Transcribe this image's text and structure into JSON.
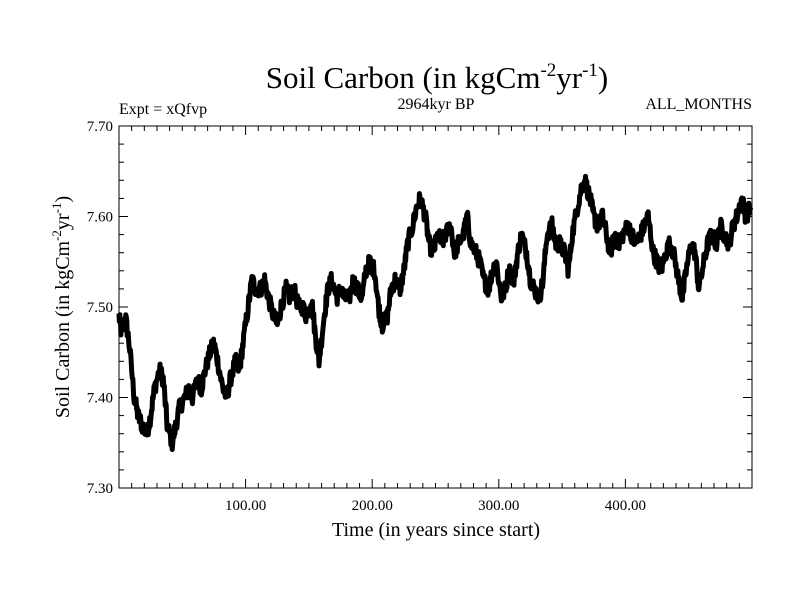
{
  "chart_data": {
    "type": "line",
    "title": "Soil Carbon (in kgCm",
    "title_sup1": "-2",
    "title_mid": "yr",
    "title_sup2": "-1",
    "title_end": ")",
    "subtitle_left": "Expt = xQfvp",
    "subtitle_center": "2964kyr BP",
    "subtitle_right": "ALL_MONTHS",
    "xlabel": "Time (in years since start)",
    "ylabel": "Soil Carbon (in kgCm",
    "ylabel_sup1": "-2",
    "ylabel_mid": "yr",
    "ylabel_sup2": "-1",
    "ylabel_end": ")",
    "xlim": [
      0,
      500
    ],
    "ylim": [
      7.3,
      7.7
    ],
    "x_ticks": [
      100,
      200,
      300,
      400
    ],
    "x_tick_labels": [
      "100.00",
      "200.00",
      "300.00",
      "400.00"
    ],
    "y_ticks": [
      7.3,
      7.4,
      7.5,
      7.6,
      7.7
    ],
    "y_tick_labels": [
      "7.30",
      "7.40",
      "7.50",
      "7.60",
      "7.70"
    ],
    "line_color": "#000000",
    "series": [
      {
        "name": "Soil Carbon",
        "x": [
          0,
          2,
          5,
          8,
          12,
          15,
          18,
          22,
          25,
          28,
          32,
          35,
          38,
          42,
          45,
          48,
          52,
          55,
          58,
          62,
          65,
          68,
          72,
          75,
          78,
          82,
          85,
          88,
          92,
          95,
          98,
          102,
          105,
          108,
          112,
          115,
          118,
          122,
          125,
          128,
          132,
          135,
          138,
          142,
          145,
          148,
          152,
          155,
          158,
          162,
          165,
          168,
          172,
          175,
          178,
          182,
          185,
          188,
          192,
          195,
          198,
          202,
          205,
          208,
          212,
          215,
          218,
          222,
          225,
          228,
          232,
          235,
          238,
          242,
          245,
          248,
          252,
          255,
          258,
          262,
          265,
          268,
          272,
          275,
          278,
          282,
          285,
          288,
          292,
          295,
          298,
          302,
          305,
          308,
          312,
          315,
          318,
          322,
          325,
          328,
          332,
          335,
          338,
          342,
          345,
          348,
          352,
          355,
          358,
          362,
          365,
          368,
          372,
          375,
          378,
          382,
          385,
          388,
          392,
          395,
          398,
          402,
          405,
          408,
          412,
          415,
          418,
          422,
          425,
          428,
          432,
          435,
          438,
          442,
          445,
          448,
          452,
          455,
          458,
          462,
          465,
          468,
          472,
          475,
          478,
          482,
          485,
          488,
          492,
          495,
          499
        ],
        "values": [
          7.49,
          7.47,
          7.49,
          7.46,
          7.4,
          7.38,
          7.37,
          7.36,
          7.38,
          7.41,
          7.43,
          7.42,
          7.37,
          7.35,
          7.37,
          7.39,
          7.4,
          7.41,
          7.4,
          7.42,
          7.41,
          7.43,
          7.45,
          7.46,
          7.44,
          7.41,
          7.4,
          7.42,
          7.44,
          7.43,
          7.46,
          7.5,
          7.53,
          7.52,
          7.52,
          7.53,
          7.51,
          7.49,
          7.48,
          7.5,
          7.52,
          7.51,
          7.52,
          7.5,
          7.5,
          7.49,
          7.51,
          7.47,
          7.44,
          7.49,
          7.52,
          7.53,
          7.51,
          7.52,
          7.51,
          7.51,
          7.53,
          7.52,
          7.51,
          7.54,
          7.55,
          7.54,
          7.5,
          7.48,
          7.49,
          7.52,
          7.53,
          7.52,
          7.54,
          7.57,
          7.59,
          7.61,
          7.62,
          7.6,
          7.57,
          7.56,
          7.58,
          7.57,
          7.58,
          7.59,
          7.56,
          7.57,
          7.58,
          7.6,
          7.57,
          7.56,
          7.55,
          7.53,
          7.52,
          7.54,
          7.55,
          7.51,
          7.52,
          7.54,
          7.53,
          7.56,
          7.58,
          7.56,
          7.53,
          7.52,
          7.51,
          7.53,
          7.58,
          7.59,
          7.57,
          7.57,
          7.56,
          7.54,
          7.58,
          7.61,
          7.63,
          7.64,
          7.62,
          7.6,
          7.59,
          7.6,
          7.58,
          7.56,
          7.58,
          7.57,
          7.58,
          7.59,
          7.58,
          7.57,
          7.58,
          7.59,
          7.6,
          7.56,
          7.55,
          7.54,
          7.56,
          7.57,
          7.56,
          7.53,
          7.51,
          7.54,
          7.57,
          7.56,
          7.52,
          7.55,
          7.57,
          7.58,
          7.57,
          7.59,
          7.58,
          7.57,
          7.59,
          7.6,
          7.62,
          7.6,
          7.61
        ]
      }
    ]
  }
}
